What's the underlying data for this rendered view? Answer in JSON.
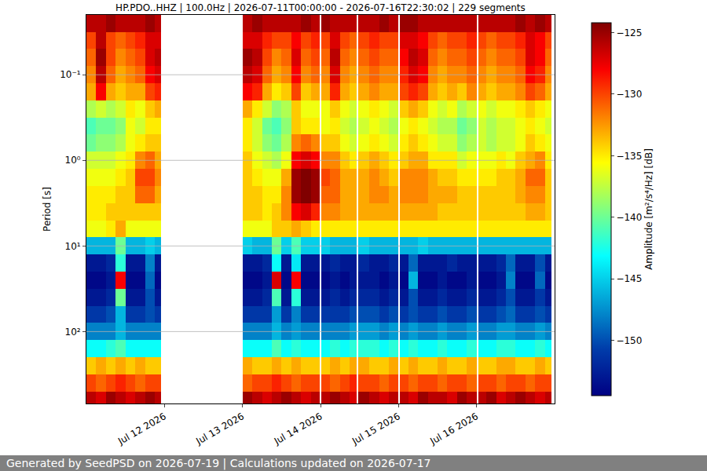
{
  "chart_data": {
    "type": "heatmap",
    "title": "HP.PDO..HHZ | 100.0Hz | 2026-07-11T00:00:00 - 2026-07-16T22:30:02 | 229 segments",
    "y_label": "Period [s]",
    "footer": "Generated by SeedPSD on 2026-07-19 | Calculations updated on 2026-07-17",
    "log": "y",
    "grid": "y",
    "color": "Jet",
    "xlim": [
      "2026-07-11 00:00",
      "2026-07-17 00:00"
    ],
    "xticks": [
      {
        "value": "2026-07-12 00:00",
        "label": "Jul 12 2026"
      },
      {
        "value": "2026-07-13 00:00",
        "label": "Jul 13 2026"
      },
      {
        "value": "2026-07-14 00:00",
        "label": "Jul 14 2026"
      },
      {
        "value": "2026-07-15 00:00",
        "label": "Jul 15 2026"
      },
      {
        "value": "2026-07-16 00:00",
        "label": "Jul 16 2026"
      }
    ],
    "ylim": [
      692,
      0.02
    ],
    "yticks": [
      {
        "value": 0.1,
        "label": "10⁻¹"
      },
      {
        "value": 1,
        "label": "10⁰"
      },
      {
        "value": 10,
        "label": "10¹"
      },
      {
        "value": 100,
        "label": "10²"
      }
    ],
    "colorbar": {
      "title": "Amplitude [m²/s⁴/Hz] [dB]",
      "range": [
        -154.5,
        -124.2
      ],
      "ticks": [
        -150,
        -145,
        -140,
        -135,
        -130,
        -125
      ]
    },
    "x_edges": [
      "2026-07-11 00:00",
      "2026-07-11 03:00",
      "2026-07-11 06:00",
      "2026-07-11 09:00",
      "2026-07-11 12:00",
      "2026-07-11 15:00",
      "2026-07-11 18:00",
      "2026-07-11 21:00",
      "2026-07-11 23:00",
      "2026-07-13 00:00",
      "2026-07-13 03:00",
      "2026-07-13 06:00",
      "2026-07-13 09:00",
      "2026-07-13 12:00",
      "2026-07-13 15:00",
      "2026-07-13 18:00",
      "2026-07-13 21:00",
      "2026-07-13 23:40",
      "2026-07-14 00:20",
      "2026-07-14 03:00",
      "2026-07-14 06:00",
      "2026-07-14 09:00",
      "2026-07-14 11:00",
      "2026-07-14 11:30",
      "2026-07-14 15:00",
      "2026-07-14 18:00",
      "2026-07-14 21:00",
      "2026-07-15 00:00",
      "2026-07-15 00:30",
      "2026-07-15 03:00",
      "2026-07-15 06:00",
      "2026-07-15 09:00",
      "2026-07-15 12:00",
      "2026-07-15 15:00",
      "2026-07-15 18:00",
      "2026-07-15 21:00",
      "2026-07-16 00:00",
      "2026-07-16 00:30",
      "2026-07-16 03:00",
      "2026-07-16 06:00",
      "2026-07-16 09:00",
      "2026-07-16 12:00",
      "2026-07-16 15:00",
      "2026-07-16 18:00",
      "2026-07-16 21:00",
      "2026-07-16 23:00"
    ],
    "y_edges": [
      0.02,
      0.032,
      0.05,
      0.079,
      0.126,
      0.2,
      0.316,
      0.5,
      0.79,
      1.26,
      2,
      3.16,
      5,
      7.9,
      12.6,
      20,
      31.6,
      50,
      79,
      126,
      200,
      316,
      500,
      692
    ],
    "z": [
      [
        -126,
        -126,
        -125,
        -126,
        -126,
        -126,
        -125,
        -126,
        null,
        -126,
        -125,
        -126,
        -126,
        -126,
        -126,
        -125,
        -126,
        null,
        -125,
        -126,
        -126,
        -126,
        null,
        -126,
        -126,
        -125,
        -126,
        null,
        -125,
        -125,
        -126,
        -126,
        -126,
        -126,
        -126,
        -126,
        null,
        -126,
        -126,
        -126,
        -126,
        -125,
        -126,
        -125,
        -126
      ],
      [
        -130,
        -126,
        -130,
        -131,
        -130,
        -129,
        -127,
        -127,
        null,
        -127,
        -127,
        -129,
        -130,
        -130,
        -128,
        -130,
        -129,
        null,
        -130,
        -127,
        -130,
        -131,
        null,
        -130,
        -129,
        -130,
        -130,
        null,
        -127,
        -127,
        -128,
        -130,
        -131,
        -130,
        -130,
        -129,
        null,
        -130,
        -131,
        -130,
        -130,
        -129,
        -127,
        -128,
        -130
      ],
      [
        -131,
        -125,
        -130,
        -132,
        -131,
        -130,
        -127,
        -126,
        null,
        -125,
        -126,
        -130,
        -132,
        -131,
        -127,
        -131,
        -130,
        null,
        -131,
        -126,
        -131,
        -132,
        null,
        -131,
        -130,
        -131,
        -131,
        null,
        -128,
        -126,
        -127,
        -131,
        -132,
        -131,
        -131,
        -130,
        null,
        -131,
        -132,
        -131,
        -131,
        -130,
        -127,
        -128,
        -131
      ],
      [
        -132,
        -126,
        -131,
        -133,
        -132,
        -131,
        -128,
        -127,
        null,
        -126,
        -127,
        -131,
        -133,
        -132,
        -128,
        -132,
        -131,
        null,
        -132,
        -127,
        -132,
        -133,
        null,
        -132,
        -131,
        -132,
        -132,
        null,
        -129,
        -127,
        -128,
        -132,
        -133,
        -132,
        -132,
        -131,
        null,
        -132,
        -133,
        -132,
        -132,
        -131,
        -128,
        -129,
        -132
      ],
      [
        -133,
        -128,
        -133,
        -134,
        -133,
        -133,
        -130,
        -129,
        null,
        -128,
        -129,
        -133,
        -135,
        -134,
        -130,
        -134,
        -133,
        null,
        -133,
        -129,
        -133,
        -134,
        null,
        -133,
        -132,
        -133,
        -133,
        null,
        -130,
        -129,
        -130,
        -133,
        -134,
        -133,
        -134,
        -132,
        null,
        -133,
        -134,
        -133,
        -133,
        -132,
        -130,
        -131,
        -133
      ],
      [
        -138,
        -137,
        -138,
        -137,
        -135,
        -136,
        -134,
        -133,
        null,
        -133,
        -135,
        -137,
        -139,
        -138,
        -134,
        -136,
        -136,
        null,
        -136,
        -134,
        -136,
        -137,
        null,
        -136,
        -135,
        -136,
        -137,
        null,
        -134,
        -133,
        -134,
        -136,
        -137,
        -136,
        -138,
        -137,
        null,
        -136,
        -137,
        -136,
        -136,
        -135,
        -134,
        -135,
        -136
      ],
      [
        -141,
        -140,
        -140,
        -139,
        -136,
        -137,
        -135,
        -135,
        null,
        -135,
        -137,
        -140,
        -141,
        -139,
        -134,
        -135,
        -135,
        null,
        -136,
        -135,
        -137,
        -138,
        null,
        -137,
        -136,
        -137,
        -138,
        null,
        -136,
        -135,
        -136,
        -137,
        -138,
        -138,
        -140,
        -139,
        null,
        -137,
        -138,
        -137,
        -137,
        -136,
        -135,
        -136,
        -137
      ],
      [
        -140,
        -139,
        -139,
        -138,
        -136,
        -135,
        -134,
        -134,
        null,
        -135,
        -137,
        -139,
        -140,
        -138,
        -132,
        -131,
        -132,
        null,
        -134,
        -134,
        -136,
        -137,
        null,
        -136,
        -135,
        -136,
        -137,
        null,
        -135,
        -134,
        -135,
        -136,
        -137,
        -137,
        -139,
        -138,
        null,
        -137,
        -138,
        -137,
        -137,
        -136,
        -134,
        -135,
        -136
      ],
      [
        -137,
        -137,
        -137,
        -136,
        -135,
        -132,
        -131,
        -133,
        null,
        -134,
        -136,
        -137,
        -138,
        -136,
        -128,
        -127,
        -128,
        null,
        -132,
        -132,
        -134,
        -135,
        null,
        -134,
        -133,
        -134,
        -135,
        null,
        -134,
        -133,
        -133,
        -135,
        -135,
        -135,
        -137,
        -136,
        null,
        -136,
        -136,
        -135,
        -136,
        -134,
        -133,
        -132,
        -135
      ],
      [
        -136,
        -136,
        -136,
        -135,
        -134,
        -130,
        -130,
        -132,
        null,
        -134,
        -135,
        -136,
        -136,
        -133,
        -125,
        -124,
        -125,
        null,
        -130,
        -131,
        -133,
        -133,
        null,
        -133,
        -132,
        -133,
        -134,
        null,
        -132,
        -132,
        -132,
        -133,
        -134,
        -134,
        -135,
        -135,
        null,
        -135,
        -135,
        -134,
        -134,
        -133,
        -131,
        -131,
        -134
      ],
      [
        -135,
        -135,
        -135,
        -134,
        -134,
        -131,
        -131,
        -133,
        null,
        -134,
        -134,
        -135,
        -135,
        -132,
        -125,
        -124,
        -125,
        null,
        -131,
        -131,
        -133,
        -133,
        null,
        -133,
        -132,
        -132,
        -133,
        null,
        -132,
        -132,
        -132,
        -133,
        -133,
        -133,
        -134,
        -134,
        null,
        -134,
        -134,
        -134,
        -134,
        -133,
        -132,
        -132,
        -134
      ],
      [
        -135,
        -135,
        -134,
        -134,
        -134,
        -134,
        -134,
        -134,
        null,
        -134,
        -134,
        -135,
        -134,
        -132,
        -128,
        -127,
        -129,
        null,
        -132,
        -132,
        -133,
        -133,
        null,
        -133,
        -133,
        -133,
        -133,
        null,
        -133,
        -133,
        -133,
        -133,
        -134,
        -134,
        -134,
        -134,
        null,
        -134,
        -134,
        -134,
        -134,
        -134,
        -133,
        -133,
        -134
      ],
      [
        -136,
        -136,
        -135,
        -133,
        -136,
        -136,
        -136,
        -136,
        null,
        -136,
        -136,
        -136,
        -134,
        -134,
        -133,
        -134,
        -135,
        null,
        -135,
        -135,
        -135,
        -135,
        null,
        -135,
        -135,
        -135,
        -135,
        null,
        -135,
        -135,
        -135,
        -135,
        -135,
        -135,
        -135,
        -135,
        null,
        -135,
        -135,
        -135,
        -135,
        -135,
        -135,
        -135,
        -135
      ],
      [
        -146,
        -146,
        -146,
        -140,
        -146,
        -146,
        -145,
        -146,
        null,
        -145,
        -146,
        -146,
        -140,
        -145,
        -141,
        -145,
        -145,
        null,
        -145,
        -146,
        -146,
        -146,
        null,
        -145,
        -146,
        -146,
        -146,
        null,
        -146,
        -146,
        -145,
        -146,
        -146,
        -146,
        -146,
        -146,
        null,
        -146,
        -146,
        -146,
        -146,
        -146,
        -146,
        -146,
        -146
      ],
      [
        -153,
        -153,
        -152,
        -142,
        -153,
        -153,
        -148,
        -153,
        null,
        -153,
        -153,
        -152,
        -143,
        -153,
        -144,
        -153,
        -153,
        null,
        -153,
        -152,
        -153,
        -153,
        null,
        -152,
        -153,
        -153,
        -152,
        null,
        -153,
        -149,
        -153,
        -153,
        -153,
        -152,
        -153,
        -153,
        null,
        -153,
        -153,
        -152,
        -149,
        -153,
        -153,
        -150,
        -153
      ],
      [
        -154,
        -154,
        -153,
        -128,
        -154,
        -154,
        -149,
        -154,
        null,
        -154,
        -154,
        -153,
        -127,
        -154,
        -128,
        -154,
        -154,
        null,
        -154,
        -153,
        -154,
        -153,
        null,
        -153,
        -153,
        -154,
        -153,
        null,
        -154,
        -146,
        -154,
        -154,
        -153,
        -154,
        -154,
        -153,
        null,
        -154,
        -154,
        -153,
        -148,
        -154,
        -154,
        -149,
        -154
      ],
      [
        -153,
        -153,
        -152,
        -140,
        -153,
        -153,
        -150,
        -153,
        null,
        -153,
        -153,
        -152,
        -141,
        -153,
        -142,
        -153,
        -153,
        null,
        -153,
        -152,
        -153,
        -152,
        null,
        -152,
        -152,
        -153,
        -152,
        null,
        -153,
        -150,
        -153,
        -153,
        -152,
        -153,
        -153,
        -152,
        null,
        -153,
        -153,
        -152,
        -150,
        -153,
        -153,
        -151,
        -153
      ],
      [
        -151,
        -151,
        -150,
        -146,
        -151,
        -151,
        -150,
        -151,
        null,
        -151,
        -151,
        -151,
        -147,
        -151,
        -148,
        -151,
        -151,
        null,
        -151,
        -151,
        -151,
        -150,
        null,
        -150,
        -150,
        -151,
        -150,
        null,
        -151,
        -150,
        -151,
        -151,
        -150,
        -151,
        -151,
        -150,
        null,
        -151,
        -151,
        -150,
        -149,
        -151,
        -151,
        -150,
        -151
      ],
      [
        -148,
        -148,
        -148,
        -146,
        -148,
        -148,
        -148,
        -148,
        null,
        -148,
        -148,
        -148,
        -146,
        -148,
        -147,
        -148,
        -148,
        null,
        -148,
        -148,
        -148,
        -147,
        null,
        -147,
        -147,
        -148,
        -147,
        null,
        -148,
        -147,
        -148,
        -148,
        -147,
        -148,
        -148,
        -147,
        null,
        -148,
        -148,
        -147,
        -147,
        -148,
        -148,
        -147,
        -148
      ],
      [
        -143,
        -143,
        -142,
        -141,
        -143,
        -143,
        -143,
        -143,
        null,
        -143,
        -143,
        -143,
        -141,
        -143,
        -142,
        -143,
        -143,
        null,
        -143,
        -142,
        -143,
        -142,
        null,
        -142,
        -142,
        -143,
        -142,
        null,
        -143,
        -142,
        -143,
        -143,
        -142,
        -143,
        -143,
        -142,
        null,
        -143,
        -143,
        -142,
        -142,
        -143,
        -143,
        -142,
        -143
      ],
      [
        -134,
        -133,
        -134,
        -133,
        -134,
        -133,
        -134,
        -134,
        null,
        -133,
        -134,
        -134,
        -133,
        -134,
        -133,
        -134,
        -134,
        null,
        -134,
        -133,
        -134,
        -133,
        null,
        -133,
        -134,
        -134,
        -133,
        null,
        -134,
        -133,
        -134,
        -134,
        -133,
        -134,
        -134,
        -133,
        null,
        -134,
        -134,
        -133,
        -133,
        -134,
        -134,
        -133,
        -134
      ],
      [
        -130,
        -131,
        -130,
        -129,
        -130,
        -131,
        -130,
        -130,
        null,
        -131,
        -130,
        -130,
        -129,
        -130,
        -131,
        -130,
        -130,
        null,
        -130,
        -131,
        -130,
        -129,
        null,
        -130,
        -130,
        -131,
        -130,
        null,
        -130,
        -131,
        -130,
        -130,
        -131,
        -130,
        -130,
        -131,
        null,
        -130,
        -130,
        -131,
        -130,
        -130,
        -131,
        -130,
        -130
      ],
      [
        -126,
        -127,
        -125,
        -126,
        -127,
        -126,
        -125,
        -126,
        null,
        -125,
        -126,
        -127,
        -126,
        -125,
        -126,
        -127,
        -126,
        null,
        -126,
        -125,
        -126,
        -127,
        null,
        -125,
        -126,
        -127,
        -126,
        null,
        -126,
        -127,
        -125,
        -126,
        -126,
        -127,
        -125,
        -126,
        null,
        -126,
        -125,
        -127,
        -126,
        -125,
        -126,
        -127,
        -126
      ]
    ]
  }
}
